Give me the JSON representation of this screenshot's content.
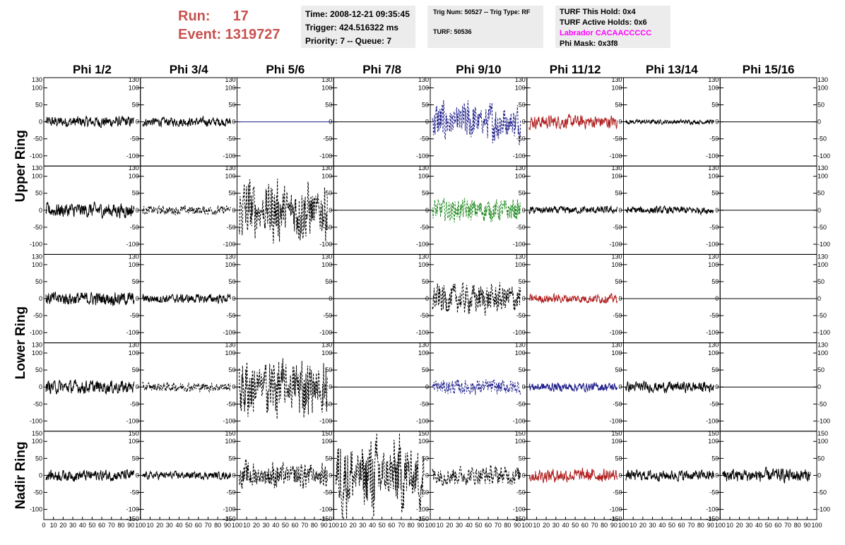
{
  "header": {
    "run_label": "Run:",
    "run_value": "17",
    "event_label": "Event:",
    "event_value": "1319727",
    "time": "Time: 2008-12-21 09:35:45",
    "trigger": "Trigger: 424.516322 ms",
    "priority": "Priority: 7 -- Queue: 7",
    "trig_num": "Trig Num: 50527 -- Trig Type: RF",
    "turf": "TURF: 50536",
    "turf_this_hold": "TURF This Hold: 0x4",
    "turf_active_holds": "TURF Active Holds: 0x6",
    "labrador": "Labrador CACAACCCCC",
    "phi_mask": "Phi Mask: 0x3f8"
  },
  "colors": {
    "header_red": "#c8514f",
    "labrador": "#ff00ff",
    "black": "#000000",
    "navy": "#1f1f8a",
    "green": "#1f8a1f",
    "red": "#b02020"
  },
  "chart_data": {
    "type": "line",
    "columns": [
      "Phi 1/2",
      "Phi 3/4",
      "Phi 5/6",
      "Phi 7/8",
      "Phi 9/10",
      "Phi 11/12",
      "Phi 13/14",
      "Phi 15/16"
    ],
    "rows": [
      "Upper Ring",
      "Upper Ring",
      "Lower Ring",
      "Lower Ring",
      "Nadir Ring"
    ],
    "ring_labels": [
      "Upper Ring",
      "Lower Ring",
      "Nadir Ring"
    ],
    "xlim": [
      0,
      100
    ],
    "ylim": [
      -130,
      130
    ],
    "y_ticks": [
      100,
      50,
      0,
      -50,
      -100
    ],
    "y_tick_labels": [
      "100",
      "50",
      "0",
      "-50",
      "-100"
    ],
    "y_top_label": "130",
    "y_top_label_nadir": "150",
    "y_bottom_label": "-150",
    "x_ticks": [
      0,
      10,
      20,
      30,
      40,
      50,
      60,
      70,
      80,
      90,
      100
    ],
    "x_tick_labels": [
      "0",
      "10",
      "20",
      "30",
      "40",
      "50",
      "60",
      "70",
      "80",
      "90",
      "100"
    ],
    "panels": [
      [
        {
          "style": "solid",
          "color": "black",
          "amplitude": 15,
          "envelope": "flat"
        },
        {
          "style": "solid",
          "color": "black",
          "amplitude": 12,
          "envelope": "flat"
        },
        {
          "style": "flat",
          "color": "navy",
          "amplitude": 0,
          "envelope": "flat"
        },
        {
          "style": "flat",
          "color": "black",
          "amplitude": 0,
          "envelope": "flat"
        },
        {
          "style": "dashed",
          "color": "navy",
          "amplitude": 60,
          "envelope": "pulse"
        },
        {
          "style": "solid",
          "color": "red",
          "amplitude": 18,
          "envelope": "flat"
        },
        {
          "style": "solid",
          "color": "black",
          "amplitude": 6,
          "envelope": "flat"
        },
        {
          "style": "flat",
          "color": "black",
          "amplitude": 0,
          "envelope": "flat"
        }
      ],
      [
        {
          "style": "solid",
          "color": "black",
          "amplitude": 20,
          "envelope": "flat"
        },
        {
          "style": "dashed",
          "color": "black",
          "amplitude": 12,
          "envelope": "flat"
        },
        {
          "style": "dashed",
          "color": "black",
          "amplitude": 90,
          "envelope": "pulse"
        },
        {
          "style": "flat",
          "color": "black",
          "amplitude": 0,
          "envelope": "flat"
        },
        {
          "style": "dashed",
          "color": "green",
          "amplitude": 30,
          "envelope": "flat"
        },
        {
          "style": "solid",
          "color": "black",
          "amplitude": 10,
          "envelope": "flat"
        },
        {
          "style": "solid",
          "color": "black",
          "amplitude": 10,
          "envelope": "flat"
        },
        {
          "style": "flat",
          "color": "black",
          "amplitude": 0,
          "envelope": "flat"
        }
      ],
      [
        {
          "style": "solid",
          "color": "black",
          "amplitude": 18,
          "envelope": "flat"
        },
        {
          "style": "solid",
          "color": "black",
          "amplitude": 12,
          "envelope": "flat"
        },
        {
          "style": "flat",
          "color": "black",
          "amplitude": 0,
          "envelope": "flat"
        },
        {
          "style": "flat",
          "color": "black",
          "amplitude": 0,
          "envelope": "flat"
        },
        {
          "style": "dashed",
          "color": "black",
          "amplitude": 40,
          "envelope": "flat"
        },
        {
          "style": "solid",
          "color": "red",
          "amplitude": 12,
          "envelope": "flat"
        },
        {
          "style": "flat",
          "color": "black",
          "amplitude": 0,
          "envelope": "flat"
        },
        {
          "style": "flat",
          "color": "black",
          "amplitude": 0,
          "envelope": "flat"
        }
      ],
      [
        {
          "style": "solid",
          "color": "black",
          "amplitude": 18,
          "envelope": "flat"
        },
        {
          "style": "dashed",
          "color": "black",
          "amplitude": 12,
          "envelope": "flat"
        },
        {
          "style": "dashed",
          "color": "black",
          "amplitude": 90,
          "envelope": "pulse"
        },
        {
          "style": "flat",
          "color": "black",
          "amplitude": 0,
          "envelope": "flat"
        },
        {
          "style": "dashed",
          "color": "navy",
          "amplitude": 20,
          "envelope": "flat"
        },
        {
          "style": "solid",
          "color": "navy",
          "amplitude": 12,
          "envelope": "flat"
        },
        {
          "style": "solid",
          "color": "black",
          "amplitude": 14,
          "envelope": "flat"
        },
        {
          "style": "flat",
          "color": "black",
          "amplitude": 0,
          "envelope": "flat"
        }
      ],
      [
        {
          "style": "solid",
          "color": "black",
          "amplitude": 15,
          "envelope": "flat"
        },
        {
          "style": "solid",
          "color": "black",
          "amplitude": 10,
          "envelope": "flat"
        },
        {
          "style": "dashed",
          "color": "black",
          "amplitude": 40,
          "envelope": "pulse"
        },
        {
          "style": "dashed",
          "color": "black",
          "amplitude": 110,
          "envelope": "pulse"
        },
        {
          "style": "dashed",
          "color": "black",
          "amplitude": 25,
          "envelope": "flat"
        },
        {
          "style": "solid",
          "color": "red",
          "amplitude": 18,
          "envelope": "flat"
        },
        {
          "style": "solid",
          "color": "black",
          "amplitude": 14,
          "envelope": "flat"
        },
        {
          "style": "solid",
          "color": "black",
          "amplitude": 18,
          "envelope": "flat"
        }
      ]
    ]
  }
}
